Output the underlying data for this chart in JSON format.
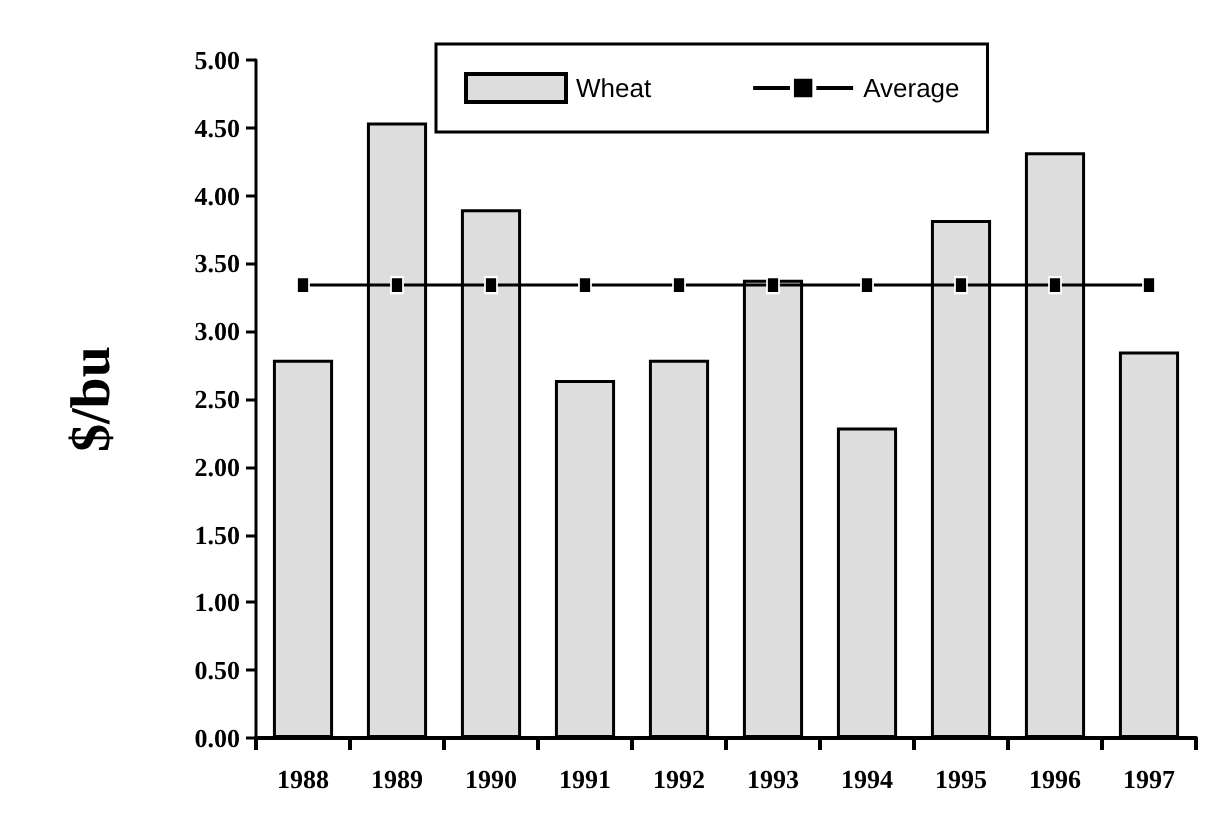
{
  "chart_data": {
    "type": "bar",
    "ylabel": "$/bu",
    "categories": [
      "1988",
      "1989",
      "1990",
      "1991",
      "1992",
      "1993",
      "1994",
      "1995",
      "1996",
      "1997"
    ],
    "series": [
      {
        "name": "Wheat",
        "color": "#dddddd",
        "values": [
          2.79,
          4.54,
          3.9,
          2.64,
          2.79,
          3.38,
          2.29,
          3.82,
          4.32,
          2.85
        ]
      },
      {
        "name": "Average",
        "type": "line",
        "color": "#000000",
        "marker": "square",
        "values": [
          3.34,
          3.34,
          3.34,
          3.34,
          3.34,
          3.34,
          3.34,
          3.34,
          3.34,
          3.34
        ]
      }
    ],
    "ylim": [
      0,
      5
    ],
    "yticks": [
      {
        "value": 0,
        "label": "0.00"
      },
      {
        "value": 0.5,
        "label": "0.50"
      },
      {
        "value": 1,
        "label": "1.00"
      },
      {
        "value": 1.5,
        "label": "1.50"
      },
      {
        "value": 2,
        "label": "2.00"
      },
      {
        "value": 2.5,
        "label": "2.50"
      },
      {
        "value": 3,
        "label": "3.00"
      },
      {
        "value": 3.5,
        "label": "3.50"
      },
      {
        "value": 4,
        "label": "4.00"
      },
      {
        "value": 4.5,
        "label": "4.50"
      },
      {
        "value": 5,
        "label": "5.00"
      }
    ],
    "grid": false,
    "legend": "top"
  }
}
